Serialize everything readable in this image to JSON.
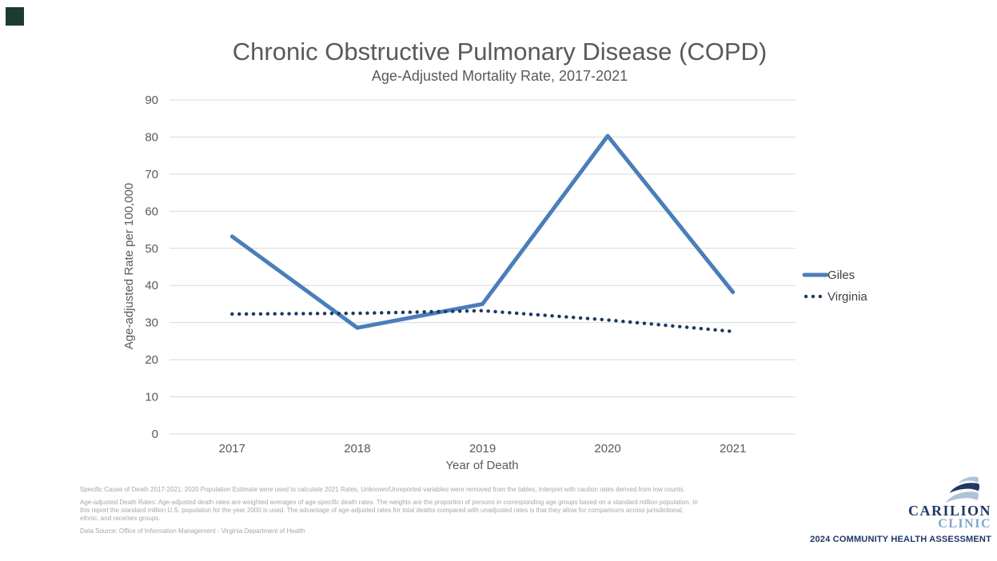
{
  "chart_data": {
    "type": "line",
    "title": "Chronic Obstructive Pulmonary Disease (COPD)",
    "subtitle": "Age-Adjusted Mortality Rate, 2017-2021",
    "xlabel": "Year of Death",
    "ylabel": "Age-adjusted Rate per 100,000",
    "x": [
      "2017",
      "2018",
      "2019",
      "2020",
      "2021"
    ],
    "ylim": [
      0,
      90
    ],
    "ytick_interval": 10,
    "grid": "horizontal-only",
    "legend_position": "right",
    "series": [
      {
        "name": "Giles",
        "style": "solid",
        "color": "#4A7EBB",
        "values": [
          53.2,
          28.6,
          35.0,
          80.3,
          38.2
        ]
      },
      {
        "name": "Virginia",
        "style": "dotted",
        "color": "#1F3864",
        "values": [
          32.3,
          32.5,
          33.2,
          30.7,
          27.6
        ]
      }
    ]
  },
  "colors": {
    "title_gray": "#595959",
    "tick_gray": "#595959",
    "legend_text": "#404040",
    "gridline": "#D9D9D9",
    "footnote_gray": "#A6A6A6",
    "corner_marker": "#1B3B33",
    "brand_navy": "#1F3864",
    "brand_light_blue": "#7FA5CE",
    "swoosh_silver": "#AFC3D8"
  },
  "footnotes": [
    "Specific Cause of Death 2017-2021: 2020 Population Estimate were used to calculate 2021 Rates, Unknown/Unreported variables were removed from the tables, Interpret with caution rates derived from low counts.",
    "Age-adjusted Death Rates: Age-adjusted death rates are weighted averages of age-specific death rates. The weights are the proportion of persons in corresponding age groups based on a standard million population. In this report the standard million U.S. population for the year 2000 is used. The advantage of age-adjusted rates for total deaths compared with unadjusted rates is that they allow for comparisons across jurisdictional, ethnic, and race/sex groups.",
    "Data Source: Office of Information Management - Virginia Department of Health"
  ],
  "branding": {
    "org_line1": "CARILION",
    "org_line2": "CLINIC",
    "assessment": "2024 COMMUNITY HEALTH ASSESSMENT"
  }
}
